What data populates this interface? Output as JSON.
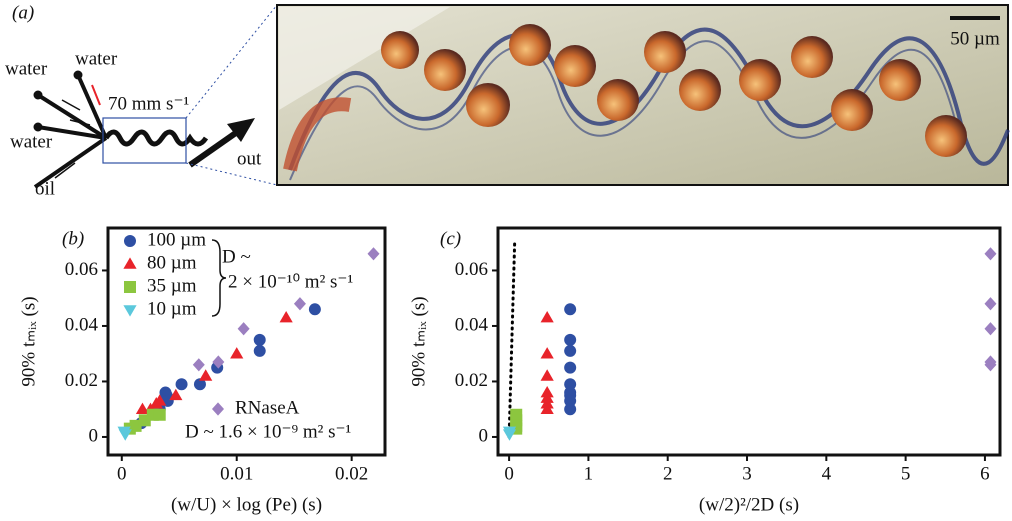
{
  "panel_a": {
    "label": "(a)",
    "inlets": [
      "water",
      "water",
      "water"
    ],
    "oil": "oil",
    "speed": "70 mm s⁻¹",
    "outlet": "out",
    "scale_bar": "50 µm"
  },
  "chart_data": [
    {
      "type": "scatter",
      "panel": "(b)",
      "ylabel": "90% tₘᵢₓ (s)",
      "xlabel": "(w/U) × log (Pe) (s)",
      "xlim": [
        -0.0012,
        0.0229
      ],
      "xticks": [
        0,
        0.01,
        0.02
      ],
      "ylim": [
        -0.0065,
        0.0753
      ],
      "yticks": [
        0,
        0.02,
        0.04,
        0.06
      ],
      "legend": "upper left",
      "annotations": [
        "D ~",
        "2 × 10⁻¹⁰ m² s⁻¹",
        "D ~ 1.6 × 10⁻⁹ m² s⁻¹"
      ],
      "series": [
        {
          "name": "100 µm",
          "color": "#2e4fa3",
          "marker": "circle",
          "x": [
            0.0017,
            0.0033,
            0.0038,
            0.0039,
            0.004,
            0.0052,
            0.0068,
            0.0083,
            0.012,
            0.012,
            0.0168
          ],
          "values": [
            0.005,
            0.01,
            0.016,
            0.015,
            0.013,
            0.019,
            0.019,
            0.025,
            0.031,
            0.035,
            0.046
          ]
        },
        {
          "name": "80 µm",
          "color": "#e8232a",
          "marker": "triangle",
          "x": [
            0.0018,
            0.0025,
            0.003,
            0.0033,
            0.0047,
            0.0073,
            0.01,
            0.0143
          ],
          "values": [
            0.01,
            0.01,
            0.012,
            0.013,
            0.015,
            0.022,
            0.03,
            0.043
          ]
        },
        {
          "name": "35 µm",
          "color": "#8cc63f",
          "marker": "square",
          "x": [
            0.0007,
            0.0012,
            0.002,
            0.0027,
            0.0033
          ],
          "values": [
            0.003,
            0.004,
            0.006,
            0.008,
            0.008
          ]
        },
        {
          "name": "10 µm",
          "color": "#5bc8dc",
          "marker": "triangle-down",
          "x": [
            0.0002,
            0.0003
          ],
          "values": [
            0.002,
            0.001
          ]
        },
        {
          "name": "RNaseA",
          "color": "#9b7fc0",
          "marker": "diamond",
          "x": [
            0.0067,
            0.0084,
            0.0106,
            0.0155,
            0.0219
          ],
          "values": [
            0.026,
            0.027,
            0.039,
            0.048,
            0.066
          ]
        }
      ]
    },
    {
      "type": "scatter",
      "panel": "(c)",
      "ylabel": "90% tₘᵢₓ (s)",
      "xlabel": "(w/2)²/2D (s)",
      "xlim": [
        -0.14,
        6.19
      ],
      "xticks": [
        0,
        1,
        2,
        3,
        4,
        5,
        6
      ],
      "ylim": [
        -0.0065,
        0.0753
      ],
      "yticks": [
        0,
        0.02,
        0.04,
        0.06
      ],
      "reference_line": {
        "color": "#000000",
        "x": [
          0,
          0.07
        ],
        "values": [
          0,
          0.07
        ]
      },
      "series": [
        {
          "color": "#2e4fa3",
          "marker": "circle",
          "x": [
            0.77,
            0.77,
            0.77,
            0.77,
            0.77,
            0.77,
            0.77,
            0.77,
            0.77
          ],
          "values": [
            0.046,
            0.035,
            0.031,
            0.025,
            0.019,
            0.016,
            0.015,
            0.013,
            0.01
          ]
        },
        {
          "color": "#e8232a",
          "marker": "triangle",
          "x": [
            0.48,
            0.48,
            0.48,
            0.48,
            0.48,
            0.48,
            0.48
          ],
          "values": [
            0.043,
            0.03,
            0.022,
            0.016,
            0.014,
            0.012,
            0.01
          ]
        },
        {
          "color": "#8cc63f",
          "marker": "square",
          "x": [
            0.09,
            0.09,
            0.09,
            0.09
          ],
          "values": [
            0.008,
            0.006,
            0.004,
            0.003
          ]
        },
        {
          "color": "#5bc8dc",
          "marker": "triangle-down",
          "x": [
            0.005,
            0.005
          ],
          "values": [
            0.002,
            0.001
          ]
        },
        {
          "color": "#9b7fc0",
          "marker": "diamond",
          "x": [
            6.07,
            6.07,
            6.07,
            6.07,
            6.07
          ],
          "values": [
            0.066,
            0.048,
            0.039,
            0.027,
            0.026
          ]
        }
      ]
    }
  ]
}
